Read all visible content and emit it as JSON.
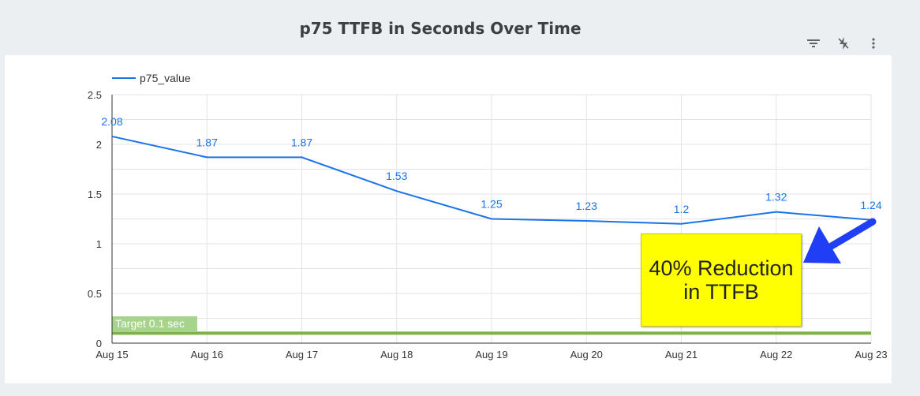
{
  "title": "p75 TTFB in Seconds Over Time",
  "toolbar": {
    "icons": [
      "filter-icon",
      "bolt-slash-icon",
      "more-vert-icon"
    ]
  },
  "chart_data": {
    "type": "line",
    "title": "p75 TTFB in Seconds Over Time",
    "categories": [
      "Aug 15",
      "Aug 16",
      "Aug 17",
      "Aug 18",
      "Aug 19",
      "Aug 20",
      "Aug 21",
      "Aug 22",
      "Aug 23"
    ],
    "series": [
      {
        "name": "p75_value",
        "values": [
          2.08,
          1.87,
          1.87,
          1.53,
          1.25,
          1.23,
          1.2,
          1.32,
          1.24
        ],
        "color": "#1a73e8"
      }
    ],
    "data_labels": [
      "2.08",
      "1.87",
      "1.87",
      "1.53",
      "1.25",
      "1.23",
      "1.2",
      "1.32",
      "1.24"
    ],
    "y_ticks": [
      "0",
      "0.5",
      "1",
      "1.5",
      "2",
      "2.5"
    ],
    "ylim": [
      0,
      2.5
    ],
    "grid": true,
    "legend": "top-left",
    "reference_line": {
      "label": "Target 0.1 sec",
      "value": 0.1,
      "color": "#7cb342",
      "label_bg": "#a5d48a"
    },
    "annotation": {
      "text": "40% Reduction\nin TTFB",
      "background": "#ffff00",
      "arrow_color": "#1f3ef5"
    }
  }
}
